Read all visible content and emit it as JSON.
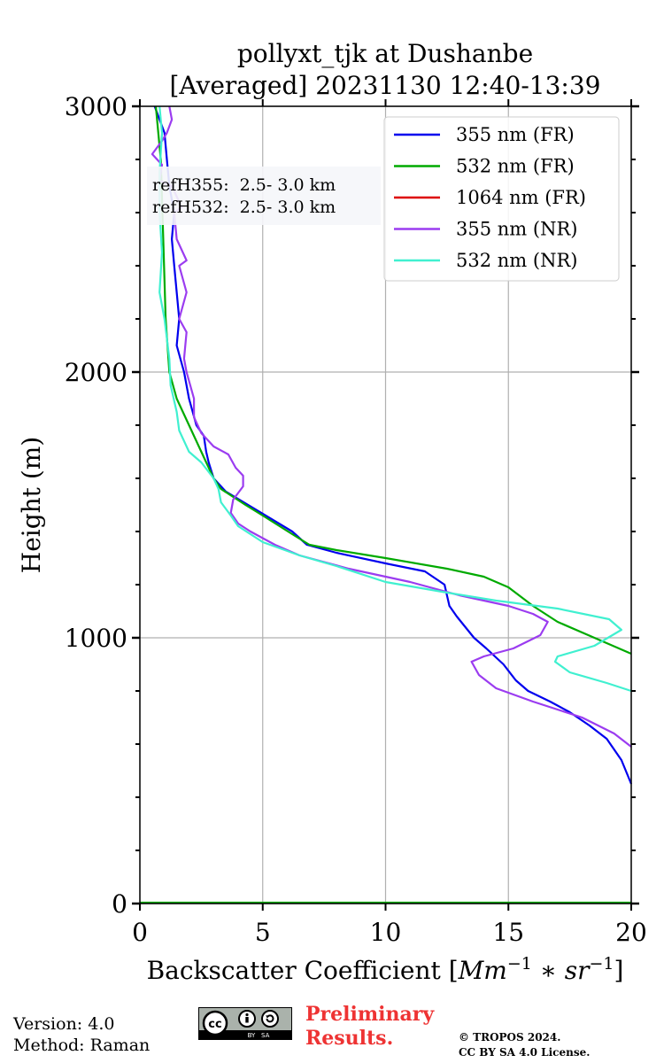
{
  "chart_data": {
    "type": "line",
    "title": "pollyxt_tjk at Dushanbe",
    "subtitle": "[Averaged] 20231130 12:40-13:39",
    "xlabel": "Backscatter Coefficient [Mm^-1 * sr^-1]",
    "xlabel_main": "Backscatter Coefficient [",
    "xlabel_units": "Mm",
    "xlabel_exp1": "−1",
    "xlabel_mid": " ∗ sr",
    "xlabel_exp2": "−1",
    "xlabel_close": "]",
    "ylabel": "Height (m)",
    "xlim": [
      0,
      20
    ],
    "ylim": [
      0,
      3000
    ],
    "xticks": [
      "0",
      "5",
      "10",
      "15",
      "20"
    ],
    "yticks": [
      "0",
      "1000",
      "2000",
      "3000"
    ],
    "grid": true,
    "legend_position": "top-right",
    "annotations": [
      "refH355:  2.5- 3.0 km",
      "refH532:  2.5- 3.0 km"
    ],
    "series": [
      {
        "name": "355 nm (FR)",
        "color": "#0000ee",
        "points": [
          [
            20,
            450
          ],
          [
            19.6,
            540
          ],
          [
            19,
            620
          ],
          [
            18.3,
            670
          ],
          [
            17.5,
            720
          ],
          [
            16.7,
            760
          ],
          [
            15.8,
            800
          ],
          [
            15.3,
            840
          ],
          [
            14.8,
            900
          ],
          [
            14.1,
            960
          ],
          [
            13.6,
            1000
          ],
          [
            12.9,
            1080
          ],
          [
            12.6,
            1120
          ],
          [
            12.4,
            1200
          ],
          [
            11.6,
            1250
          ],
          [
            10.0,
            1280
          ],
          [
            8.0,
            1320
          ],
          [
            6.8,
            1350
          ],
          [
            6.2,
            1400
          ],
          [
            5.3,
            1450
          ],
          [
            4.4,
            1500
          ],
          [
            3.5,
            1550
          ],
          [
            3.0,
            1600
          ],
          [
            2.8,
            1660
          ],
          [
            2.7,
            1700
          ],
          [
            2.6,
            1760
          ],
          [
            2.3,
            1800
          ],
          [
            2.0,
            1900
          ],
          [
            1.8,
            2000
          ],
          [
            1.5,
            2100
          ],
          [
            1.6,
            2200
          ],
          [
            1.5,
            2300
          ],
          [
            1.4,
            2400
          ],
          [
            1.3,
            2500
          ],
          [
            1.4,
            2600
          ],
          [
            1.2,
            2700
          ],
          [
            1.1,
            2800
          ],
          [
            1.0,
            2900
          ],
          [
            0.6,
            3000
          ]
        ]
      },
      {
        "name": "532 nm (FR)",
        "color": "#00aa00",
        "points": [
          [
            20,
            940
          ],
          [
            18.5,
            1000
          ],
          [
            17.0,
            1060
          ],
          [
            16.0,
            1120
          ],
          [
            15.0,
            1190
          ],
          [
            14.0,
            1230
          ],
          [
            12.5,
            1260
          ],
          [
            10.0,
            1300
          ],
          [
            8.0,
            1330
          ],
          [
            6.9,
            1350
          ],
          [
            6.2,
            1390
          ],
          [
            5.0,
            1460
          ],
          [
            4.3,
            1500
          ],
          [
            3.3,
            1560
          ],
          [
            3.0,
            1600
          ],
          [
            2.5,
            1700
          ],
          [
            2.0,
            1800
          ],
          [
            1.5,
            1900
          ],
          [
            1.2,
            2000
          ],
          [
            1.05,
            2200
          ],
          [
            0.95,
            2500
          ],
          [
            0.85,
            2800
          ],
          [
            0.65,
            3000
          ]
        ],
        "baseline": true
      },
      {
        "name": "1064 nm (FR)",
        "color": "#dd0000",
        "points": []
      },
      {
        "name": "355 nm (NR)",
        "color": "#9b3cf0",
        "points": [
          [
            20,
            590
          ],
          [
            19.3,
            640
          ],
          [
            18.0,
            700
          ],
          [
            16.0,
            760
          ],
          [
            14.5,
            810
          ],
          [
            13.8,
            860
          ],
          [
            13.5,
            910
          ],
          [
            14.0,
            930
          ],
          [
            15.2,
            960
          ],
          [
            16.3,
            1010
          ],
          [
            16.6,
            1060
          ],
          [
            16.0,
            1090
          ],
          [
            15.0,
            1120
          ],
          [
            13.0,
            1160
          ],
          [
            11.0,
            1210
          ],
          [
            8.5,
            1260
          ],
          [
            6.5,
            1310
          ],
          [
            5.5,
            1350
          ],
          [
            4.5,
            1400
          ],
          [
            4.0,
            1430
          ],
          [
            3.7,
            1470
          ],
          [
            3.8,
            1520
          ],
          [
            4.2,
            1570
          ],
          [
            4.2,
            1610
          ],
          [
            3.9,
            1640
          ],
          [
            3.6,
            1690
          ],
          [
            3.0,
            1720
          ],
          [
            2.5,
            1770
          ],
          [
            2.2,
            1830
          ],
          [
            2.2,
            1900
          ],
          [
            1.9,
            2000
          ],
          [
            1.8,
            2050
          ],
          [
            1.9,
            2150
          ],
          [
            1.6,
            2200
          ],
          [
            1.9,
            2300
          ],
          [
            1.6,
            2400
          ],
          [
            1.9,
            2420
          ],
          [
            1.5,
            2500
          ],
          [
            1.4,
            2600
          ],
          [
            1.7,
            2620
          ],
          [
            1.3,
            2700
          ],
          [
            0.8,
            2720
          ],
          [
            0.9,
            2780
          ],
          [
            0.5,
            2820
          ],
          [
            0.9,
            2870
          ],
          [
            1.1,
            2900
          ],
          [
            1.3,
            2950
          ],
          [
            1.2,
            3000
          ]
        ]
      },
      {
        "name": "532 nm (NR)",
        "color": "#40f0d0",
        "points": [
          [
            20,
            800
          ],
          [
            19.0,
            830
          ],
          [
            17.5,
            870
          ],
          [
            16.9,
            910
          ],
          [
            17.0,
            930
          ],
          [
            18.5,
            970
          ],
          [
            19.6,
            1030
          ],
          [
            19.1,
            1070
          ],
          [
            17.0,
            1110
          ],
          [
            14.5,
            1140
          ],
          [
            12.5,
            1170
          ],
          [
            10.0,
            1210
          ],
          [
            8.0,
            1270
          ],
          [
            6.5,
            1310
          ],
          [
            5.0,
            1360
          ],
          [
            4.0,
            1420
          ],
          [
            3.7,
            1460
          ],
          [
            3.3,
            1510
          ],
          [
            3.2,
            1560
          ],
          [
            3.0,
            1600
          ],
          [
            2.5,
            1660
          ],
          [
            2.0,
            1700
          ],
          [
            1.6,
            1780
          ],
          [
            1.5,
            1850
          ],
          [
            1.25,
            1950
          ],
          [
            1.2,
            2050
          ],
          [
            1.0,
            2200
          ],
          [
            0.8,
            2300
          ],
          [
            0.9,
            2450
          ],
          [
            0.8,
            2600
          ],
          [
            0.8,
            2750
          ],
          [
            0.9,
            2900
          ],
          [
            0.8,
            3000
          ]
        ]
      }
    ]
  },
  "footer": {
    "version": "Version: 4.0",
    "method": "Method: Raman",
    "preliminary_line1": "Preliminary",
    "preliminary_line2": "Results.",
    "copyright_line1": "© TROPOS 2024.",
    "copyright_line2": "CC BY SA 4.0 License.",
    "cc_badge_text": "BY   SA"
  }
}
